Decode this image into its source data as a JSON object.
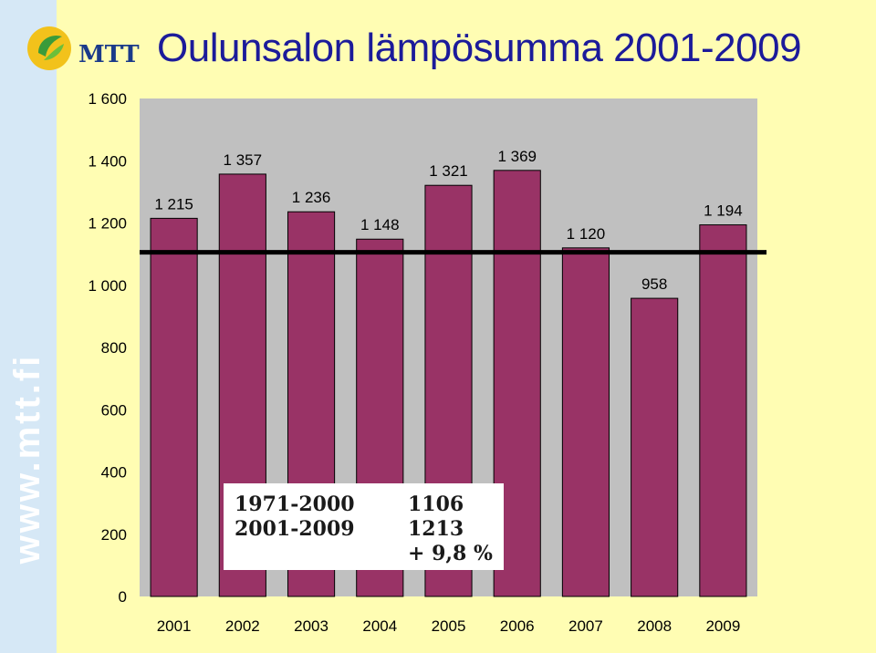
{
  "header": {
    "title": "Oulunsalon lämpösumma 2001-2009",
    "logo_text": "MTT",
    "sidebar_text": "www.mtt.fi"
  },
  "chart_data": {
    "type": "bar",
    "title": "Oulunsalon lämpösumma 2001-2009",
    "xlabel": "",
    "ylabel": "",
    "categories": [
      "2001",
      "2002",
      "2003",
      "2004",
      "2005",
      "2006",
      "2007",
      "2008",
      "2009"
    ],
    "values": [
      1215,
      1357,
      1236,
      1148,
      1321,
      1369,
      1120,
      958,
      1194
    ],
    "value_labels": [
      "1 215",
      "1 357",
      "1 236",
      "1 148",
      "1 321",
      "1 369",
      "1 120",
      "958",
      "1 194"
    ],
    "ylim": [
      0,
      1600
    ],
    "yticks": [
      0,
      200,
      400,
      600,
      800,
      1000,
      1200,
      1400,
      1600
    ],
    "ytick_labels": [
      "0",
      "200",
      "400",
      "600",
      "800",
      "1 000",
      "1 200",
      "1 400",
      "1 600"
    ],
    "reference_line": 1106,
    "bar_color": "#993366",
    "plot_background": "#c0c0c0",
    "grid": false,
    "legend": "none"
  },
  "info_box": {
    "rows": [
      {
        "period": "1971-2000",
        "value": "1106"
      },
      {
        "period": "2001-2009",
        "value": "1213"
      }
    ],
    "change": "+ 9,8 %"
  },
  "colors": {
    "background": "#fffdb3",
    "sidebar": "#d6e8f6",
    "title": "#1c1b9a",
    "bars": "#993366",
    "plot_area": "#c0c0c0",
    "reference_line": "#000000"
  }
}
